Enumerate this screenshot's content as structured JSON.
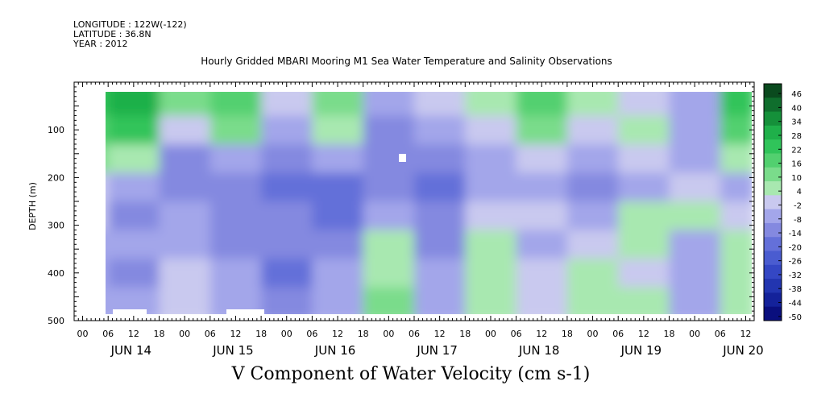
{
  "header": {
    "longitude": "LONGITUDE : 122W(-122)",
    "latitude": "LATITUDE : 36.8N",
    "year": "YEAR : 2012"
  },
  "title": "Hourly Gridded MBARI Mooring M1 Sea Water Temperature and Salinity Observations",
  "subtitle": "V Component of Water Velocity (cm s-1)",
  "chart_data": {
    "type": "heatmap",
    "xlabel": "",
    "ylabel": "DEPTH (m)",
    "x_hour_ticks": [
      "00",
      "06",
      "12",
      "18",
      "00",
      "06",
      "12",
      "18",
      "00",
      "06",
      "12",
      "18",
      "00",
      "06",
      "12",
      "18",
      "00",
      "06",
      "12",
      "18",
      "00",
      "06",
      "12",
      "18",
      "00",
      "06",
      "12"
    ],
    "x_day_labels": [
      "JUN 14",
      "JUN 15",
      "JUN 16",
      "JUN 17",
      "JUN 18",
      "JUN 19",
      "JUN 20"
    ],
    "xlim": [
      "JUN 13 22:00",
      "JUN 20 14:00"
    ],
    "y_ticks": [
      100,
      200,
      300,
      400,
      500
    ],
    "ylim": [
      500,
      0
    ],
    "colorbar_levels": [
      46,
      40,
      34,
      28,
      22,
      16,
      10,
      4,
      -2,
      -8,
      -14,
      -20,
      -26,
      -32,
      -38,
      -44,
      -50
    ],
    "colorbar_colors": [
      "#0a4a1e",
      "#0f6e2d",
      "#15903a",
      "#1fb04a",
      "#30c45a",
      "#52d06f",
      "#7adc8b",
      "#a8e8b0",
      "#c9c9ef",
      "#a3a6ea",
      "#8489e0",
      "#6470d9",
      "#4a5cd0",
      "#3447c4",
      "#2235b0",
      "#14229a",
      "#0a0f7e"
    ],
    "sampled_grid": {
      "depths_m": [
        40,
        100,
        160,
        220,
        280,
        340,
        400,
        460
      ],
      "times": [
        "JUN 14 00",
        "JUN 14 12",
        "JUN 15 00",
        "JUN 15 12",
        "JUN 16 00",
        "JUN 16 12",
        "JUN 17 00",
        "JUN 17 12",
        "JUN 18 00",
        "JUN 18 12",
        "JUN 19 00",
        "JUN 19 12",
        "JUN 20 00",
        "JUN 20 12"
      ],
      "values_cm_s": [
        [
          22,
          28,
          12,
          16,
          -2,
          10,
          -4,
          -2,
          8,
          18,
          4,
          2,
          -6,
          22
        ],
        [
          20,
          24,
          -2,
          10,
          -8,
          4,
          -10,
          -8,
          2,
          12,
          -2,
          4,
          -8,
          18
        ],
        [
          10,
          4,
          -10,
          -4,
          -14,
          -4,
          -14,
          -14,
          -6,
          2,
          -8,
          -2,
          -4,
          6
        ],
        [
          2,
          -8,
          -10,
          -14,
          -20,
          -18,
          -14,
          -20,
          -8,
          -6,
          -10,
          -4,
          2,
          -4
        ],
        [
          -2,
          -10,
          -8,
          -12,
          -14,
          -20,
          -4,
          -14,
          2,
          -2,
          -8,
          4,
          4,
          -2
        ],
        [
          -4,
          -8,
          -4,
          -10,
          -12,
          -10,
          4,
          -10,
          4,
          -4,
          2,
          6,
          -4,
          4
        ],
        [
          -6,
          -10,
          -2,
          -8,
          -16,
          -8,
          6,
          -8,
          6,
          -2,
          4,
          2,
          -6,
          6
        ],
        [
          -4,
          -8,
          -2,
          -6,
          -10,
          -4,
          10,
          -4,
          4,
          0,
          6,
          4,
          -4,
          8
        ]
      ]
    }
  }
}
